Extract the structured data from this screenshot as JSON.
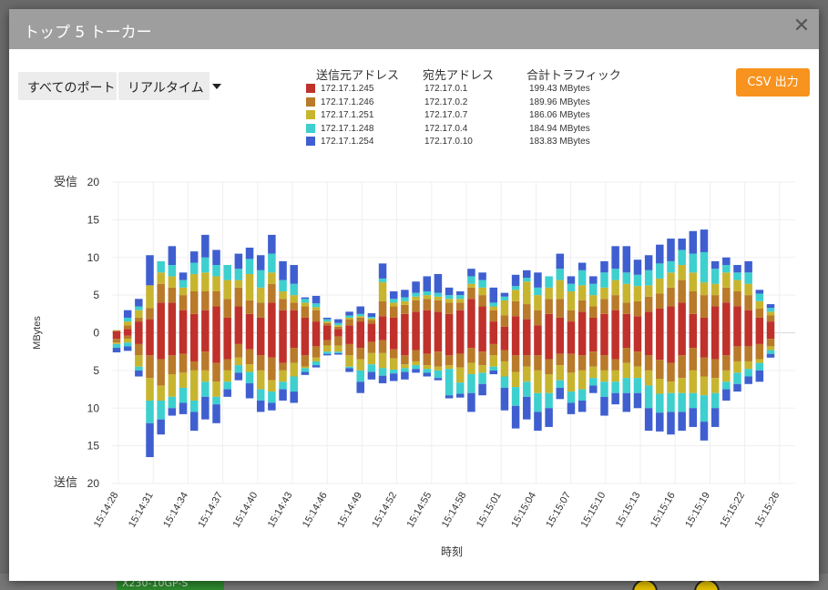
{
  "dialog": {
    "title": "トップ 5 トーカー",
    "close_symbol": "✕"
  },
  "controls": {
    "port_button": "すべてのポート",
    "mode_button": "リアルタイム",
    "csv_button": "CSV 出力"
  },
  "legend": {
    "headers": {
      "source": "送信元アドレス",
      "destination": "宛先アドレス",
      "total": "合計トラフィック"
    },
    "rows": [
      {
        "color": "#c0312b",
        "source": "172.17.1.245",
        "destination": "172.17.0.1",
        "total": "199.43 MBytes"
      },
      {
        "color": "#b97a2a",
        "source": "172.17.1.246",
        "destination": "172.17.0.2",
        "total": "189.96 MBytes"
      },
      {
        "color": "#c8b52f",
        "source": "172.17.1.251",
        "destination": "172.17.0.7",
        "total": "186.06 MBytes"
      },
      {
        "color": "#3ecfcf",
        "source": "172.17.1.248",
        "destination": "172.17.0.4",
        "total": "184.94 MBytes"
      },
      {
        "color": "#3f5fd0",
        "source": "172.17.1.254",
        "destination": "172.17.0.10",
        "total": "183.83 MBytes"
      }
    ]
  },
  "background": {
    "badge_text": "X230-10GP-S"
  },
  "chart_data": {
    "type": "bar",
    "stacked": true,
    "diverging": true,
    "ylabel": "MBytes",
    "xlabel": "時刻",
    "upper_label": "受信",
    "lower_label": "送信",
    "ylim": [
      -20,
      20
    ],
    "y_ticks": [
      20,
      15,
      10,
      5,
      0,
      5,
      10,
      15,
      20
    ],
    "x_ticks": [
      "15:14:28",
      "15:14:31",
      "15:14:34",
      "15:14:37",
      "15:14:40",
      "15:14:43",
      "15:14:46",
      "15:14:49",
      "15:14:52",
      "15:14:55",
      "15:14:58",
      "15:15:01",
      "15:15:04",
      "15:15:07",
      "15:15:10",
      "15:15:13",
      "15:15:16",
      "15:15:19",
      "15:15:22",
      "15:15:26"
    ],
    "time_start": "15:14:28",
    "time_end": "15:15:26",
    "grid": true,
    "series": [
      {
        "name": "172.17.1.245",
        "values_received": [
          0.2,
          0.5,
          1.5,
          1.8,
          4,
          4,
          3,
          2.5,
          3,
          3.5,
          2,
          3.5,
          2.5,
          2,
          4,
          3,
          3,
          2,
          1.5,
          1,
          0.5,
          1,
          1.5,
          1.2,
          2.2,
          2,
          2.5,
          2.8,
          3,
          2.8,
          2.5,
          3,
          4.5,
          3.5,
          1.5,
          0.8,
          2.2,
          1.8,
          1,
          2.5,
          2,
          1.5,
          2.8,
          2,
          2.5,
          3,
          2.5,
          2.2,
          2.8,
          3.2,
          3.5,
          4,
          2.5,
          2,
          3.5,
          4,
          3.5,
          3,
          2,
          1.5
        ],
        "values_sent": [
          -0.8,
          -0.4,
          -1.5,
          -3,
          -3.5,
          -3,
          -2.8,
          -3.8,
          -2.5,
          -4,
          -3.5,
          -1.5,
          -2.2,
          -3,
          -3.3,
          -4,
          -2,
          -3,
          -1.8,
          -1,
          -0.5,
          -1.5,
          -2,
          -1.2,
          -1,
          -2.2,
          -3,
          -2.3,
          -2.8,
          -2.5,
          -3,
          -2.8,
          -2,
          -2.5,
          -1.5,
          -2.3,
          -3,
          -3,
          -3,
          -3.5,
          -2.8,
          -2.8,
          -3,
          -2.5,
          -3,
          -3.5,
          -2,
          -2.5,
          -3,
          -3.6,
          -4,
          -3,
          -2,
          -3.3,
          -3.5,
          -3,
          -1.8,
          -1.8,
          -1.5,
          -0.8
        ]
      },
      {
        "name": "172.17.1.246",
        "values_received": [
          0.1,
          0.5,
          0.5,
          1.5,
          2.5,
          2,
          2,
          3,
          2.5,
          2,
          2.5,
          2.5,
          1.8,
          2,
          2.5,
          1.5,
          1,
          1.5,
          1.5,
          0.3,
          0.3,
          0.8,
          0.5,
          0.5,
          2,
          1.5,
          1.2,
          1.5,
          1.5,
          1.5,
          1.5,
          1,
          1.5,
          1.5,
          1.5,
          1.5,
          2,
          2,
          2,
          2,
          2.5,
          1.5,
          1.5,
          1.5,
          2,
          2,
          1.5,
          2,
          2,
          2,
          2.5,
          3,
          3,
          3,
          1.5,
          2,
          2,
          2,
          1.2,
          0.8
        ],
        "values_sent": [
          -0.5,
          -0.4,
          -1.5,
          -3,
          -3.5,
          -2.5,
          -2.5,
          -1.2,
          -2.5,
          -2.5,
          -1.5,
          -1.8,
          -2,
          -2,
          -3,
          -1,
          -2,
          -1.5,
          -1.5,
          -0.7,
          -1.2,
          -1.5,
          -1.5,
          -1.5,
          -1.7,
          -1.2,
          -1.2,
          -1.5,
          -1.5,
          -2,
          -1.3,
          -1.8,
          -2,
          -1.8,
          -1.5,
          -1.5,
          -2.2,
          -1.5,
          -2,
          -2,
          -1.5,
          -2.5,
          -2,
          -2,
          -2,
          -1.5,
          -2,
          -2,
          -2,
          -2.5,
          -2.5,
          -3,
          -3,
          -2.5,
          -2.5,
          -2,
          -2,
          -2,
          -2,
          -1
        ],
        "series_note": ""
      },
      {
        "name": "172.17.1.251",
        "values_received": [
          0.05,
          0.5,
          1,
          3,
          1.5,
          1.5,
          1,
          2.3,
          2.5,
          2,
          2.5,
          1,
          3.5,
          2,
          1.5,
          1,
          1,
          0.5,
          0.4,
          0.2,
          0.2,
          0.2,
          0.2,
          0.2,
          2.5,
          0.5,
          0.5,
          0.5,
          0.5,
          0.5,
          0.5,
          0.5,
          0.5,
          1,
          0.5,
          2,
          1.5,
          3,
          2,
          1.5,
          2.5,
          2.5,
          2,
          1.5,
          1.5,
          2,
          2.5,
          2,
          1.5,
          2,
          2,
          2,
          2.5,
          1.7,
          1.5,
          2,
          1.5,
          1.5,
          1,
          0.5
        ],
        "values_sent": [
          -0.2,
          -0.5,
          -1.5,
          -3,
          -2,
          -3,
          -2,
          -4,
          -1.5,
          -2,
          -1.5,
          -1,
          -1,
          -2.5,
          -1.5,
          -1.5,
          -1.8,
          -0.2,
          -0.5,
          -0.8,
          -0.8,
          -1.5,
          -1.5,
          -1.5,
          -2,
          -1.5,
          -0.5,
          -0.5,
          -0.5,
          -0.5,
          -0.5,
          -2,
          -1.5,
          -1,
          -1.5,
          -2,
          -2,
          -2,
          -3,
          -2.5,
          -2,
          -2.5,
          -2.5,
          -1.5,
          -1.5,
          -1.5,
          -2,
          -1.5,
          -2,
          -2,
          -1.5,
          -2,
          -3,
          -2.5,
          -2,
          -1.5,
          -1.5,
          -1,
          -0.5,
          -0.5
        ],
        "series_note": ""
      },
      {
        "name": "172.17.1.248",
        "values_received": [
          0,
          0.5,
          0.5,
          0,
          1.5,
          1.5,
          1,
          1.5,
          2,
          1.5,
          2,
          1.5,
          2,
          2.3,
          2.5,
          1.5,
          1.5,
          0.5,
          0.5,
          0.3,
          0.3,
          0.3,
          0.3,
          0.2,
          0.5,
          0.5,
          0.5,
          0.5,
          0.5,
          0.5,
          0.5,
          0.5,
          1,
          1,
          0.5,
          0.5,
          0.5,
          0.5,
          1,
          1.5,
          1.5,
          1,
          2,
          1.5,
          2,
          1.5,
          1.5,
          1.5,
          2,
          2,
          1.5,
          2,
          2.5,
          4,
          2,
          1,
          1,
          1.5,
          1,
          0.5
        ],
        "values_sent": [
          -0.5,
          -0.5,
          -0.5,
          -3,
          -2.5,
          -1.5,
          -2,
          -1.5,
          -2,
          -1,
          -1,
          -1,
          -1.5,
          -1.5,
          -1.5,
          -1,
          -2,
          -0.5,
          -0.5,
          -0.3,
          -0.2,
          -0.2,
          -1.5,
          -1,
          -1,
          -0.5,
          -0.5,
          -0.5,
          -0.5,
          -1,
          -3.5,
          -1.5,
          -2.5,
          -1.5,
          -0.5,
          -1.5,
          -2.5,
          -2,
          -2.5,
          -2,
          -1,
          -1.5,
          -1.5,
          -1,
          -2,
          -1.5,
          -2,
          -2,
          -3,
          -2.5,
          -2.5,
          -2.5,
          -2,
          -3.5,
          -2,
          -1,
          -1.5,
          -1,
          -1,
          -0.5
        ]
      },
      {
        "name": "172.17.1.254",
        "values_received": [
          0,
          1,
          1,
          4,
          0,
          2.5,
          1,
          1.5,
          3,
          2,
          0,
          2,
          1.5,
          2,
          2.5,
          2.5,
          2.5,
          0.2,
          1,
          0.2,
          0.5,
          0.5,
          1,
          0.5,
          2,
          1,
          1,
          1.5,
          2,
          2.5,
          1,
          0.5,
          1,
          1,
          2,
          0.5,
          1.5,
          1,
          2,
          0,
          2,
          1,
          1,
          1,
          1.5,
          3,
          3.5,
          2,
          2,
          2.5,
          3,
          1.5,
          3,
          3,
          1,
          1,
          1,
          1.5,
          0.5,
          0.5
        ],
        "values_sent": [
          -0.6,
          -0.6,
          -0.8,
          -4.5,
          -2,
          -1,
          -1.5,
          -2.5,
          -3,
          -2.5,
          -1,
          -1,
          -2,
          -1.5,
          -1,
          -1.5,
          -1.5,
          -0.4,
          -0.3,
          -0.2,
          -0.2,
          -0.5,
          -1.5,
          -1,
          -1,
          -1,
          -1,
          -0.5,
          -0.5,
          -0.3,
          -0.4,
          -0.5,
          -2.5,
          -1.5,
          -0.5,
          -3,
          -3,
          -3,
          -2.5,
          -2.5,
          -1.5,
          -1.5,
          -1.5,
          -1,
          -2.5,
          -1.5,
          -2.5,
          -2,
          -3,
          -2.5,
          -3,
          -2.5,
          -2.5,
          -2.5,
          -2.5,
          -1.5,
          -1,
          -1,
          -1.5,
          -0.5
        ]
      }
    ]
  }
}
